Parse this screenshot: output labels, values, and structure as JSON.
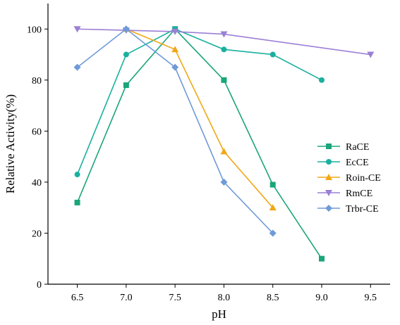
{
  "chart_data": {
    "type": "line",
    "xlabel": "pH",
    "ylabel": "Relative Activity(%)",
    "xlim": [
      6.2,
      9.7
    ],
    "ylim": [
      0,
      110
    ],
    "x_ticks": [
      "6.5",
      "7.0",
      "7.5",
      "8.0",
      "8.5",
      "9.0",
      "9.5"
    ],
    "y_ticks": [
      "0",
      "20",
      "40",
      "60",
      "80",
      "100"
    ],
    "grid": false,
    "legend_position": "right",
    "series": [
      {
        "name": "RaCE",
        "color": "#1aa57b",
        "marker": "square",
        "x": [
          6.5,
          7.0,
          7.5,
          8.0,
          8.5,
          9.0
        ],
        "y": [
          32,
          78,
          100,
          80,
          39,
          10
        ]
      },
      {
        "name": "EcCE",
        "color": "#1ab0a0",
        "marker": "circle",
        "x": [
          6.5,
          7.0,
          7.5,
          8.0,
          8.5,
          9.0
        ],
        "y": [
          43,
          90,
          100,
          92,
          90,
          80
        ]
      },
      {
        "name": "Roin-CE",
        "color": "#f0a818",
        "marker": "triangle-up",
        "x": [
          7.0,
          7.5,
          8.0,
          8.5
        ],
        "y": [
          100,
          92,
          52,
          30
        ]
      },
      {
        "name": "RmCE",
        "color": "#9b7fd6",
        "marker": "triangle-down",
        "x": [
          6.5,
          7.0,
          7.5,
          8.0,
          9.5
        ],
        "y": [
          100,
          99.5,
          99,
          98,
          90
        ]
      },
      {
        "name": "Trbr-CE",
        "color": "#6f9ad8",
        "marker": "diamond",
        "x": [
          6.5,
          7.0,
          7.5,
          8.0,
          8.5
        ],
        "y": [
          85,
          100,
          85,
          40,
          20
        ]
      }
    ]
  }
}
